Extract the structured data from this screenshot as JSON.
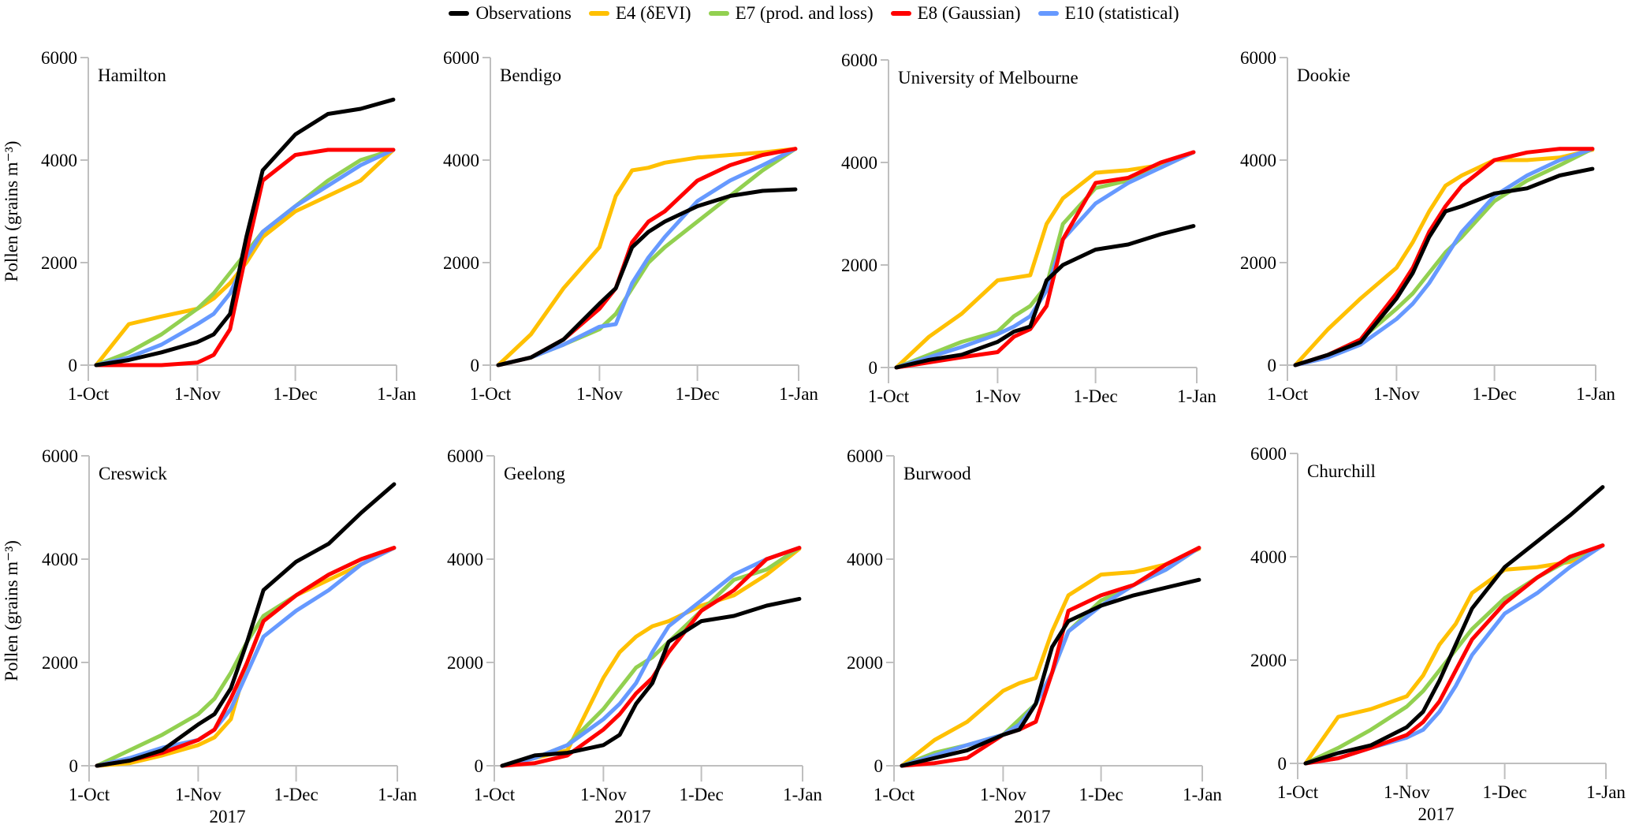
{
  "chart_data": [
    {
      "type": "line",
      "title": "Hamilton",
      "ylabel": "Pollen (grains m⁻³)",
      "xlabel": "",
      "ylim": [
        0,
        6000
      ],
      "yticks": [
        0,
        2000,
        4000,
        6000
      ],
      "xticks": [
        "1-Oct",
        "1-Nov",
        "1-Dec",
        "1-Jan"
      ],
      "grid": false,
      "x": [
        "2017-10-01",
        "2017-10-11",
        "2017-10-21",
        "2017-11-01",
        "2017-11-06",
        "2017-11-11",
        "2017-11-16",
        "2017-11-21",
        "2017-12-01",
        "2017-12-11",
        "2017-12-21",
        "2017-12-31"
      ],
      "series": [
        {
          "name": "Observations",
          "values": [
            0,
            100,
            250,
            450,
            600,
            1000,
            2500,
            3800,
            4500,
            4900,
            5000,
            5180
          ]
        },
        {
          "name": "E4 (δEVI)",
          "values": [
            0,
            800,
            950,
            1100,
            1300,
            1600,
            2000,
            2500,
            3000,
            3300,
            3600,
            4200
          ]
        },
        {
          "name": "E7 (prod. and loss)",
          "values": [
            0,
            250,
            600,
            1100,
            1400,
            1800,
            2200,
            2600,
            3100,
            3600,
            4000,
            4200
          ]
        },
        {
          "name": "E8 (Gaussian)",
          "values": [
            0,
            0,
            0,
            50,
            200,
            700,
            2200,
            3600,
            4100,
            4200,
            4200,
            4200
          ]
        },
        {
          "name": "E10 (statistical)",
          "values": [
            0,
            150,
            400,
            800,
            1000,
            1400,
            2100,
            2600,
            3100,
            3500,
            3900,
            4200
          ]
        }
      ]
    },
    {
      "type": "line",
      "title": "Bendigo",
      "ylabel": "",
      "xlabel": "",
      "ylim": [
        0,
        6000
      ],
      "yticks": [
        0,
        2000,
        4000,
        6000
      ],
      "xticks": [
        "1-Oct",
        "1-Nov",
        "1-Dec",
        "1-Jan"
      ],
      "grid": false,
      "x": [
        "2017-10-01",
        "2017-10-11",
        "2017-10-21",
        "2017-11-01",
        "2017-11-06",
        "2017-11-11",
        "2017-11-16",
        "2017-11-21",
        "2017-12-01",
        "2017-12-11",
        "2017-12-21",
        "2017-12-31"
      ],
      "series": [
        {
          "name": "Observations",
          "values": [
            0,
            150,
            500,
            1200,
            1500,
            2300,
            2600,
            2800,
            3100,
            3300,
            3400,
            3430
          ]
        },
        {
          "name": "E4 (δEVI)",
          "values": [
            0,
            600,
            1500,
            2300,
            3300,
            3800,
            3850,
            3950,
            4050,
            4100,
            4150,
            4220
          ]
        },
        {
          "name": "E7 (prod. and loss)",
          "values": [
            0,
            150,
            400,
            700,
            1000,
            1500,
            2000,
            2300,
            2800,
            3300,
            3800,
            4220
          ]
        },
        {
          "name": "E8 (Gaussian)",
          "values": [
            0,
            150,
            500,
            1100,
            1500,
            2400,
            2800,
            3000,
            3600,
            3900,
            4100,
            4220
          ]
        },
        {
          "name": "E10 (statistical)",
          "values": [
            0,
            150,
            400,
            750,
            800,
            1600,
            2100,
            2500,
            3200,
            3600,
            3900,
            4220
          ]
        }
      ]
    },
    {
      "type": "line",
      "title": "University of Melbourne",
      "ylabel": "",
      "xlabel": "",
      "ylim": [
        0,
        6000
      ],
      "yticks": [
        0,
        2000,
        4000,
        6000
      ],
      "xticks": [
        "1-Oct",
        "1-Nov",
        "1-Dec",
        "1-Jan"
      ],
      "grid": false,
      "x": [
        "2017-10-01",
        "2017-10-11",
        "2017-10-21",
        "2017-11-01",
        "2017-11-06",
        "2017-11-11",
        "2017-11-16",
        "2017-11-21",
        "2017-12-01",
        "2017-12-11",
        "2017-12-21",
        "2017-12-31"
      ],
      "series": [
        {
          "name": "Observations",
          "values": [
            0,
            150,
            250,
            500,
            700,
            800,
            1700,
            2000,
            2300,
            2400,
            2600,
            2760
          ]
        },
        {
          "name": "E4 (δEVI)",
          "values": [
            0,
            600,
            1050,
            1700,
            1750,
            1800,
            2800,
            3300,
            3800,
            3850,
            3950,
            4200
          ]
        },
        {
          "name": "E7 (prod. and loss)",
          "values": [
            0,
            250,
            500,
            700,
            1000,
            1200,
            1600,
            2800,
            3500,
            3650,
            3900,
            4200
          ]
        },
        {
          "name": "E8 (Gaussian)",
          "values": [
            0,
            100,
            200,
            300,
            600,
            750,
            1200,
            2500,
            3600,
            3700,
            4000,
            4200
          ]
        },
        {
          "name": "E10 (statistical)",
          "values": [
            0,
            200,
            400,
            650,
            800,
            1000,
            1500,
            2500,
            3200,
            3600,
            3900,
            4200
          ]
        }
      ]
    },
    {
      "type": "line",
      "title": "Dookie",
      "ylabel": "",
      "xlabel": "",
      "ylim": [
        0,
        6000
      ],
      "yticks": [
        0,
        2000,
        4000,
        6000
      ],
      "xticks": [
        "1-Oct",
        "1-Nov",
        "1-Dec",
        "1-Jan"
      ],
      "grid": false,
      "x": [
        "2017-10-01",
        "2017-10-11",
        "2017-10-21",
        "2017-11-01",
        "2017-11-06",
        "2017-11-11",
        "2017-11-16",
        "2017-11-21",
        "2017-12-01",
        "2017-12-11",
        "2017-12-21",
        "2017-12-31"
      ],
      "series": [
        {
          "name": "Observations",
          "values": [
            0,
            200,
            450,
            1300,
            1800,
            2500,
            3000,
            3100,
            3350,
            3450,
            3700,
            3830
          ]
        },
        {
          "name": "E4 (δEVI)",
          "values": [
            0,
            700,
            1300,
            1900,
            2400,
            3000,
            3500,
            3700,
            4000,
            4000,
            4050,
            4200
          ]
        },
        {
          "name": "E7 (prod. and loss)",
          "values": [
            0,
            200,
            500,
            1100,
            1400,
            1800,
            2200,
            2500,
            3200,
            3600,
            3900,
            4220
          ]
        },
        {
          "name": "E8 (Gaussian)",
          "values": [
            0,
            200,
            500,
            1400,
            1900,
            2600,
            3100,
            3500,
            4000,
            4150,
            4220,
            4220
          ]
        },
        {
          "name": "E10 (statistical)",
          "values": [
            0,
            150,
            400,
            900,
            1200,
            1600,
            2100,
            2600,
            3300,
            3700,
            4000,
            4220
          ]
        }
      ]
    },
    {
      "type": "line",
      "title": "Creswick",
      "ylabel": "Pollen (grains m⁻³)",
      "xlabel": "2017",
      "ylim": [
        0,
        6000
      ],
      "yticks": [
        0,
        2000,
        4000,
        6000
      ],
      "xticks": [
        "1-Oct",
        "1-Nov",
        "1-Dec",
        "1-Jan"
      ],
      "grid": false,
      "x": [
        "2017-10-01",
        "2017-10-11",
        "2017-10-21",
        "2017-11-01",
        "2017-11-06",
        "2017-11-11",
        "2017-11-16",
        "2017-11-21",
        "2017-12-01",
        "2017-12-11",
        "2017-12-21",
        "2017-12-31"
      ],
      "series": [
        {
          "name": "Observations",
          "values": [
            0,
            100,
            300,
            800,
            1000,
            1500,
            2400,
            3400,
            3950,
            4300,
            4900,
            5450
          ]
        },
        {
          "name": "E4 (δEVI)",
          "values": [
            0,
            50,
            200,
            400,
            550,
            900,
            2000,
            2800,
            3300,
            3600,
            3900,
            4220
          ]
        },
        {
          "name": "E7 (prod. and loss)",
          "values": [
            0,
            300,
            600,
            1000,
            1300,
            1800,
            2400,
            2900,
            3300,
            3700,
            4000,
            4220
          ]
        },
        {
          "name": "E8 (Gaussian)",
          "values": [
            0,
            100,
            250,
            500,
            700,
            1300,
            2000,
            2800,
            3300,
            3700,
            4000,
            4220
          ]
        },
        {
          "name": "E10 (statistical)",
          "values": [
            0,
            150,
            350,
            500,
            700,
            1100,
            1800,
            2500,
            3000,
            3400,
            3900,
            4220
          ]
        }
      ]
    },
    {
      "type": "line",
      "title": "Geelong",
      "ylabel": "",
      "xlabel": "2017",
      "ylim": [
        0,
        6000
      ],
      "yticks": [
        0,
        2000,
        4000,
        6000
      ],
      "xticks": [
        "1-Oct",
        "1-Nov",
        "1-Dec",
        "1-Jan"
      ],
      "grid": false,
      "x": [
        "2017-10-01",
        "2017-10-11",
        "2017-10-21",
        "2017-11-01",
        "2017-11-06",
        "2017-11-11",
        "2017-11-16",
        "2017-11-21",
        "2017-12-01",
        "2017-12-11",
        "2017-12-21",
        "2017-12-31"
      ],
      "series": [
        {
          "name": "Observations",
          "values": [
            0,
            200,
            250,
            400,
            600,
            1200,
            1600,
            2400,
            2800,
            2900,
            3100,
            3230
          ]
        },
        {
          "name": "E4 (δEVI)",
          "values": [
            0,
            150,
            300,
            1700,
            2200,
            2500,
            2700,
            2800,
            3100,
            3300,
            3700,
            4200
          ]
        },
        {
          "name": "E7 (prod. and loss)",
          "values": [
            0,
            150,
            400,
            1100,
            1500,
            1900,
            2100,
            2400,
            3000,
            3600,
            3800,
            4220
          ]
        },
        {
          "name": "E8 (Gaussian)",
          "values": [
            0,
            50,
            200,
            700,
            1000,
            1400,
            1700,
            2200,
            3000,
            3400,
            4000,
            4220
          ]
        },
        {
          "name": "E10 (statistical)",
          "values": [
            0,
            150,
            400,
            900,
            1200,
            1600,
            2200,
            2700,
            3200,
            3700,
            4000,
            4220
          ]
        }
      ]
    },
    {
      "type": "line",
      "title": "Burwood",
      "ylabel": "",
      "xlabel": "2017",
      "ylim": [
        0,
        6000
      ],
      "yticks": [
        0,
        2000,
        4000,
        6000
      ],
      "xticks": [
        "1-Oct",
        "1-Nov",
        "1-Dec",
        "1-Jan"
      ],
      "grid": false,
      "x": [
        "2017-10-01",
        "2017-10-11",
        "2017-10-21",
        "2017-11-01",
        "2017-11-06",
        "2017-11-11",
        "2017-11-16",
        "2017-11-21",
        "2017-12-01",
        "2017-12-11",
        "2017-12-21",
        "2017-12-31"
      ],
      "series": [
        {
          "name": "Observations",
          "values": [
            0,
            150,
            300,
            600,
            700,
            1200,
            2300,
            2800,
            3100,
            3300,
            3450,
            3600
          ]
        },
        {
          "name": "E4 (δEVI)",
          "values": [
            0,
            500,
            850,
            1450,
            1600,
            1700,
            2600,
            3300,
            3700,
            3750,
            3900,
            4200
          ]
        },
        {
          "name": "E7 (prod. and loss)",
          "values": [
            0,
            250,
            400,
            600,
            900,
            1200,
            1800,
            2600,
            3200,
            3500,
            3800,
            4220
          ]
        },
        {
          "name": "E8 (Gaussian)",
          "values": [
            0,
            50,
            150,
            600,
            700,
            850,
            1800,
            3000,
            3300,
            3500,
            3900,
            4220
          ]
        },
        {
          "name": "E10 (statistical)",
          "values": [
            0,
            200,
            400,
            600,
            800,
            1200,
            1800,
            2600,
            3100,
            3500,
            3800,
            4220
          ]
        }
      ]
    },
    {
      "type": "line",
      "title": "Churchill",
      "ylabel": "",
      "xlabel": "2017",
      "ylim": [
        0,
        6000
      ],
      "yticks": [
        0,
        2000,
        4000,
        6000
      ],
      "xticks": [
        "1-Oct",
        "1-Nov",
        "1-Dec",
        "1-Jan"
      ],
      "grid": false,
      "x": [
        "2017-10-01",
        "2017-10-11",
        "2017-10-21",
        "2017-11-01",
        "2017-11-06",
        "2017-11-11",
        "2017-11-16",
        "2017-11-21",
        "2017-12-01",
        "2017-12-11",
        "2017-12-21",
        "2017-12-31"
      ],
      "series": [
        {
          "name": "Observations",
          "values": [
            0,
            200,
            350,
            700,
            1000,
            1600,
            2300,
            3000,
            3800,
            4300,
            4800,
            5350
          ]
        },
        {
          "name": "E4 (δEVI)",
          "values": [
            0,
            900,
            1050,
            1300,
            1700,
            2300,
            2700,
            3300,
            3750,
            3800,
            3900,
            4220
          ]
        },
        {
          "name": "E7 (prod. and loss)",
          "values": [
            0,
            300,
            650,
            1100,
            1400,
            1800,
            2200,
            2600,
            3200,
            3600,
            3950,
            4220
          ]
        },
        {
          "name": "E8 (Gaussian)",
          "values": [
            0,
            100,
            300,
            550,
            800,
            1200,
            1800,
            2400,
            3100,
            3600,
            4000,
            4220
          ]
        },
        {
          "name": "E10 (statistical)",
          "values": [
            0,
            100,
            300,
            500,
            650,
            1000,
            1500,
            2100,
            2900,
            3300,
            3800,
            4220
          ]
        }
      ]
    }
  ],
  "legend": {
    "placement": "top",
    "items": [
      {
        "label": "Observations",
        "color": "#000000"
      },
      {
        "label": "E4 (δEVI)",
        "color": "#FFC000"
      },
      {
        "label": "E7 (prod. and loss)",
        "color": "#92D050"
      },
      {
        "label": "E8 (Gaussian)",
        "color": "#FF0000"
      },
      {
        "label": "E10 (statistical)",
        "color": "#6699FF"
      }
    ]
  }
}
